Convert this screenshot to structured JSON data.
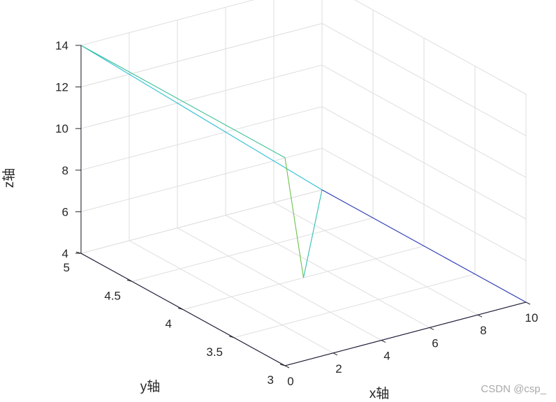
{
  "chart_data": {
    "type": "line",
    "title": "",
    "xlabel": "x轴",
    "ylabel": "y轴",
    "zlabel": "z轴",
    "xlim": [
      0,
      10
    ],
    "ylim": [
      3,
      5
    ],
    "zlim": [
      4,
      14
    ],
    "x_ticks": [
      "0",
      "2",
      "4",
      "6",
      "8",
      "10"
    ],
    "y_ticks": [
      "3",
      "3.5",
      "4",
      "4.5",
      "5"
    ],
    "z_ticks": [
      "4",
      "6",
      "8",
      "10",
      "12",
      "14"
    ],
    "grid": true,
    "view": "3d",
    "path": [
      {
        "x": 0,
        "y": 3,
        "z": 4,
        "color": "#2a2ab5"
      },
      {
        "x": 0,
        "y": 5,
        "z": 4,
        "color": "#2a2ab5"
      },
      {
        "x": 0,
        "y": 5,
        "z": 14,
        "color": "#2ea8c8"
      },
      {
        "x": 10,
        "y": 5,
        "z": 4,
        "color": "#2ac0d8"
      },
      {
        "x": 10,
        "y": 3,
        "z": 4,
        "color": "#2a8ab8"
      },
      {
        "x": 0,
        "y": 3,
        "z": 14,
        "color": "#3cc08a"
      },
      {
        "x": 5,
        "y": 4,
        "z": 4,
        "color": "#70c040"
      }
    ],
    "segments": [
      {
        "from": 0,
        "to": 1,
        "color": "#2a2ab5"
      },
      {
        "from": 0,
        "to": 4,
        "color": "#2a2ab5"
      },
      {
        "from": 1,
        "to": 2,
        "color": "#2a2ab5"
      },
      {
        "from": 2,
        "to": 3,
        "color": "#2bbfd4"
      },
      {
        "from": 3,
        "to": 6,
        "color": "#2ec0b4"
      },
      {
        "from": 5,
        "to": 6,
        "color": "#6cc24a"
      },
      {
        "from": 5,
        "to": 2,
        "color": "#3cc09a"
      },
      {
        "from": 3,
        "to": 4,
        "color": "#2a3ab8"
      }
    ]
  },
  "watermark": "CSDN @csp_"
}
